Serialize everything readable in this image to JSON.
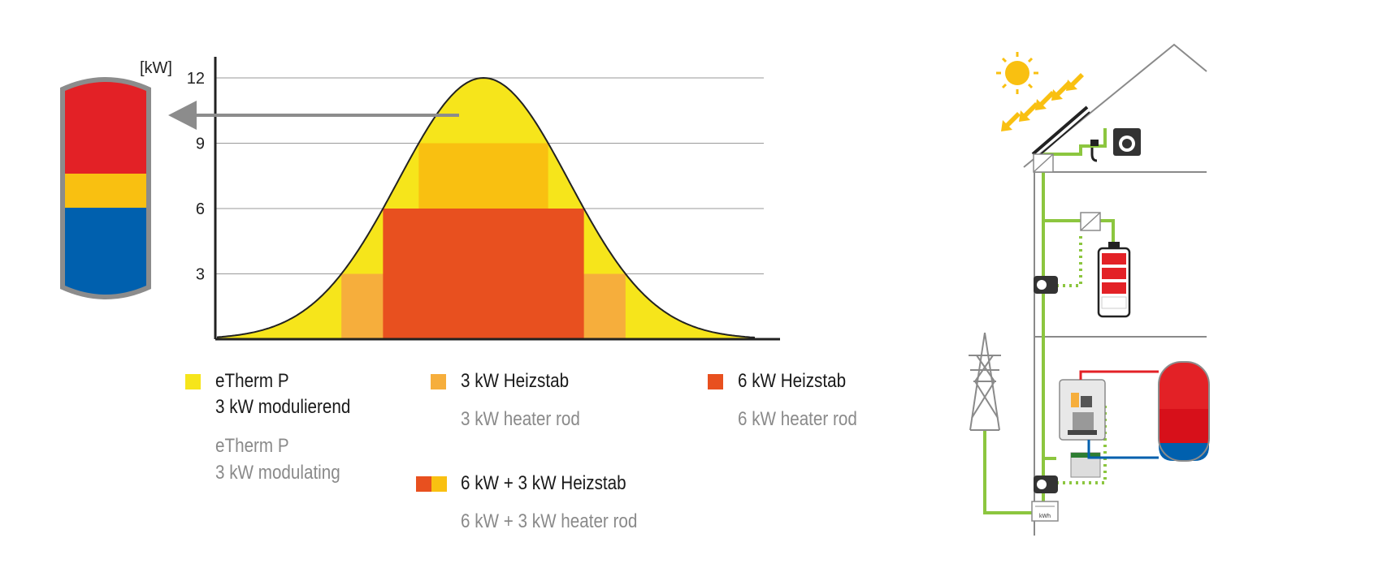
{
  "chart_data": {
    "type": "area",
    "ylabel": "[kW]",
    "yticks": [
      "3",
      "6",
      "9",
      "12"
    ],
    "ylim": [
      0,
      13
    ],
    "grid": true,
    "curve": {
      "peak_kw": 12,
      "shape": "bell"
    },
    "bands": [
      {
        "name": "eTherm P 3 kW modulierend",
        "color": "#f6e51b",
        "from_kw": 0,
        "to_kw": 12
      },
      {
        "name": "3 kW Heizstab",
        "color": "#f6ae3c",
        "from_kw": 0,
        "to_kw": 3
      },
      {
        "name": "6 kW Heizstab",
        "color": "#e8501f",
        "from_kw": 0,
        "to_kw": 6
      },
      {
        "name": "6 kW + 3 kW Heizstab",
        "color": "#f9c011",
        "from_kw": 6,
        "to_kw": 9
      }
    ]
  },
  "legend": {
    "etherm": {
      "de_line1": "eTherm P",
      "de_line2": "3 kW modulierend",
      "en_line1": "eTherm P",
      "en_line2": "3 kW modulating",
      "color": "#f6e51b"
    },
    "rod3": {
      "de": "3 kW Heizstab",
      "en": "3 kW heater rod",
      "color": "#f6ae3c"
    },
    "rod6": {
      "de": "6 kW Heizstab",
      "en": "6 kW heater rod",
      "color": "#e8501f"
    },
    "rod63": {
      "de": "6 kW + 3 kW Heizstab",
      "en": "6 kW + 3 kW heater rod",
      "color_a": "#e8501f",
      "color_b": "#f9c011"
    }
  },
  "colors": {
    "tank_hot": "#e32126",
    "tank_mid": "#f9c011",
    "tank_cold": "#0060ae",
    "tank_frame": "#8c8c8c",
    "line_green": "#8cc63f",
    "house_line": "#8a8a8a",
    "sun": "#f9c011"
  },
  "house": {
    "meter_label": "kWh"
  }
}
